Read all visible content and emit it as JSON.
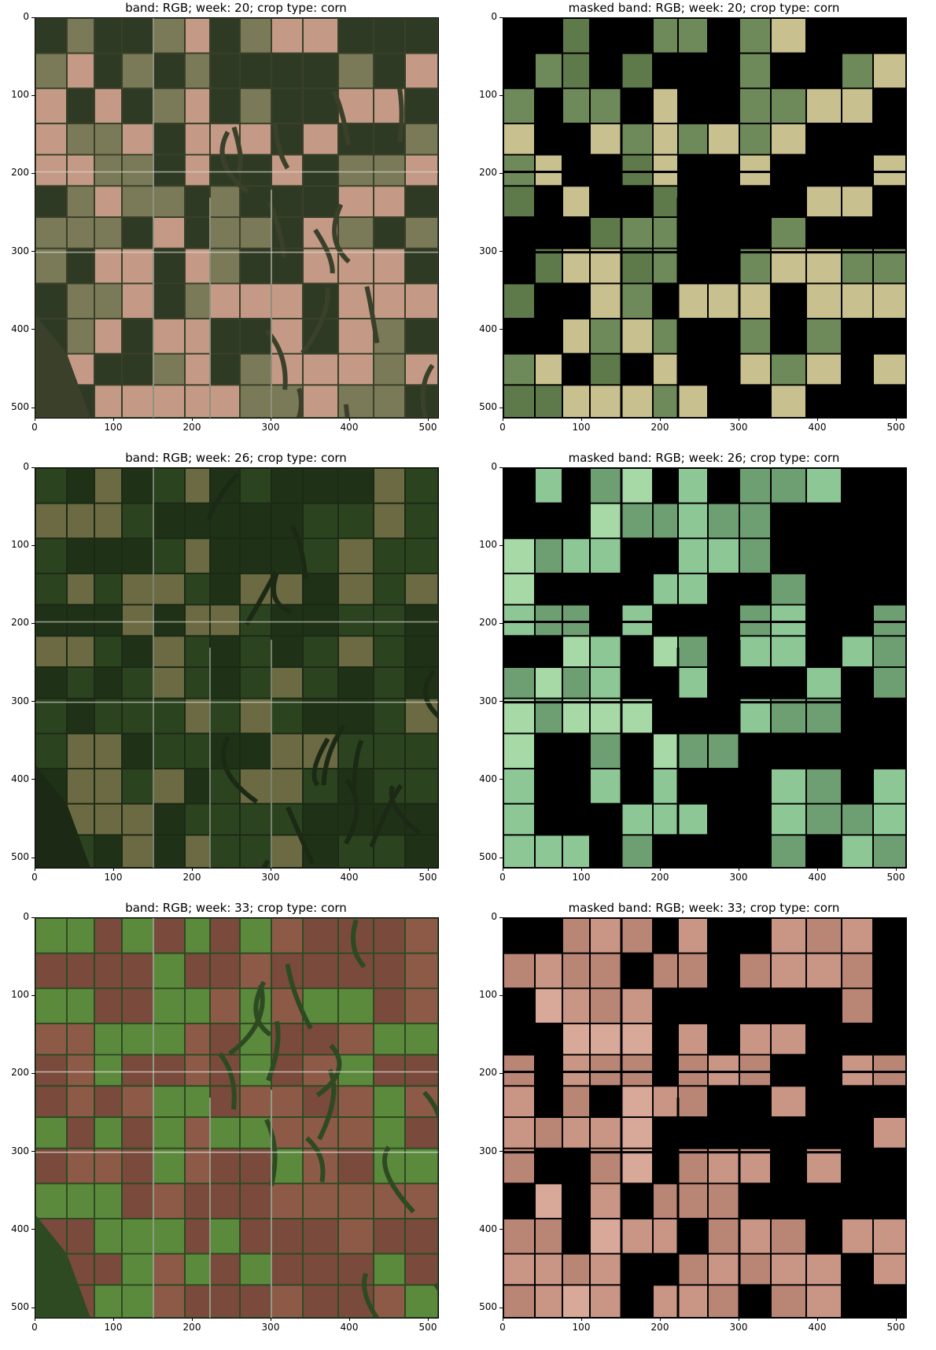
{
  "figure": {
    "panels": [
      {
        "title": "band: RGB; week: 20; crop type: corn",
        "masked": false,
        "palette": {
          "field_a": "#c49a86",
          "field_b": "#2f3a24",
          "field_c": "#7a7a58",
          "background": "#3a4029",
          "road": "#d9d9d0"
        }
      },
      {
        "title": "masked band: RGB; week: 20; crop type: corn",
        "masked": true,
        "palette": {
          "field_a": "#6f8a5a",
          "field_b": "#c9c08f",
          "field_c": "#5e7a4b",
          "background": "#000000",
          "road": "#ffffff"
        }
      },
      {
        "title": "band: RGB; week: 26; crop type: corn",
        "masked": false,
        "palette": {
          "field_a": "#1f3217",
          "field_b": "#2c4320",
          "field_c": "#6b6a42",
          "background": "#1c2a15",
          "road": "#cfd3c4"
        }
      },
      {
        "title": "masked band: RGB; week: 26; crop type: corn",
        "masked": true,
        "palette": {
          "field_a": "#8ec796",
          "field_b": "#6e9f73",
          "field_c": "#a7d9a7",
          "background": "#000000",
          "road": "#ffffff"
        }
      },
      {
        "title": "band: RGB; week: 33; crop type: corn",
        "masked": false,
        "palette": {
          "field_a": "#7a4a3c",
          "field_b": "#5c8a3c",
          "field_c": "#8e5a48",
          "background": "#2e4a22",
          "road": "#e6e6e0"
        }
      },
      {
        "title": "masked band: RGB; week: 33; crop type: corn",
        "masked": true,
        "palette": {
          "field_a": "#c99585",
          "field_b": "#b98575",
          "field_c": "#d8a898",
          "background": "#000000",
          "road": "#ffffff"
        }
      }
    ],
    "x_ticks": [
      "0",
      "100",
      "200",
      "300",
      "400",
      "500"
    ],
    "y_ticks": [
      "0",
      "100",
      "200",
      "300",
      "400",
      "500"
    ],
    "axis_range": [
      0,
      512
    ]
  }
}
